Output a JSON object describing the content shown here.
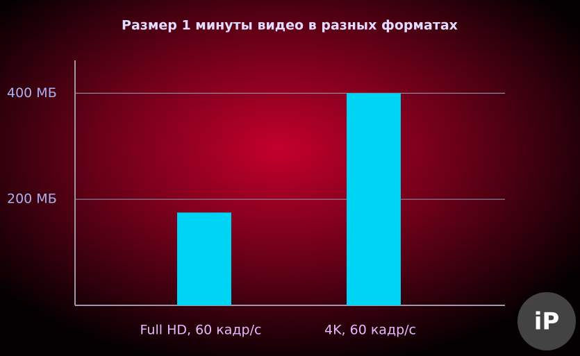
{
  "chart_data": {
    "type": "bar",
    "title": "Размер 1 минуты видео в разных форматах",
    "categories": [
      "Full HD, 60 кадр/с",
      "4K, 60 кадр/с"
    ],
    "values": [
      175,
      400
    ],
    "color": "#00d4f5",
    "ylim": [
      0,
      462
    ],
    "yticks": [
      {
        "value": 200,
        "label": "200 МБ"
      },
      {
        "value": 400,
        "label": "400 МБ"
      }
    ],
    "grid": true
  },
  "watermark": "iP"
}
